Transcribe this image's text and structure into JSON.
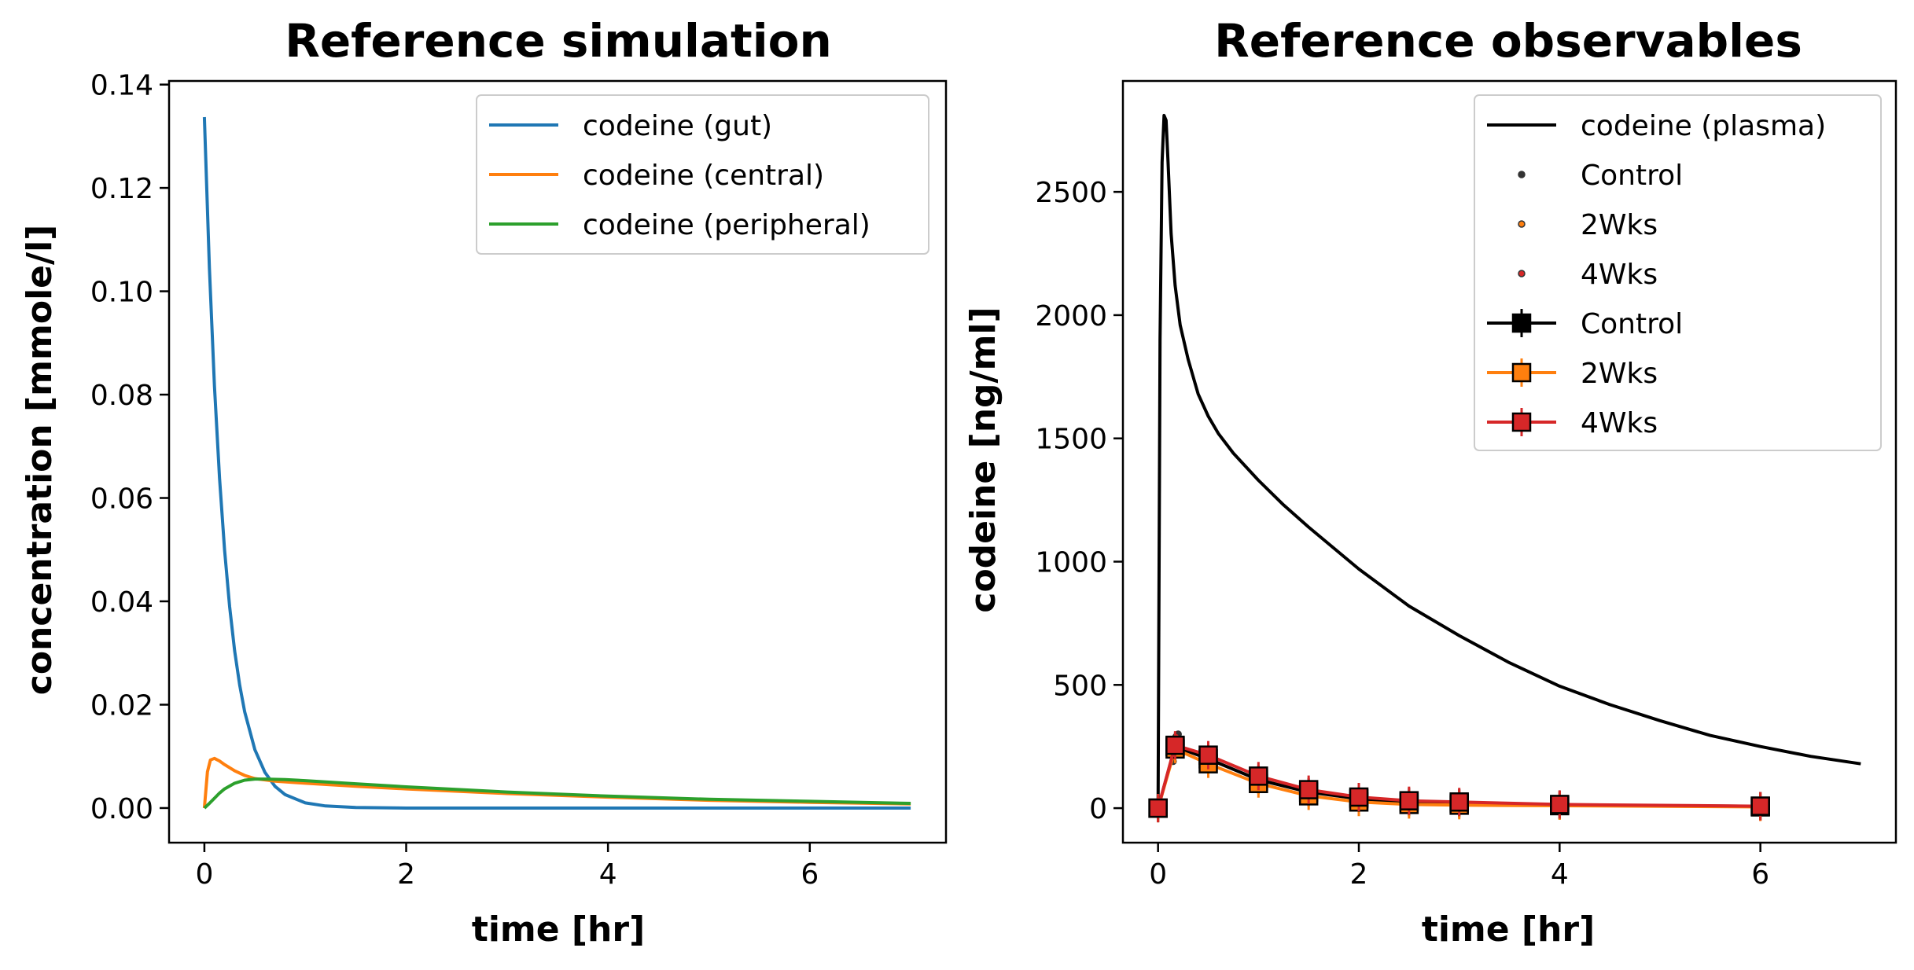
{
  "chart_data": [
    {
      "type": "line",
      "title": "Reference simulation",
      "xlabel": "time [hr]",
      "ylabel": "concentration [mmole/l]",
      "xlim": [
        -0.35,
        7.35
      ],
      "ylim": [
        -0.0067,
        0.1407
      ],
      "xticks": [
        0,
        2,
        4,
        6
      ],
      "xtick_labels": [
        "0",
        "2",
        "4",
        "6"
      ],
      "yticks": [
        0.0,
        0.02,
        0.04,
        0.06,
        0.08,
        0.1,
        0.12,
        0.14
      ],
      "ytick_labels": [
        "0.00",
        "0.02",
        "0.04",
        "0.06",
        "0.08",
        "0.10",
        "0.12",
        "0.14"
      ],
      "legend_position": "top-right",
      "grid": false,
      "series": [
        {
          "name": "codeine (gut)",
          "color": "#1f77b4",
          "x": [
            0,
            0.05,
            0.1,
            0.15,
            0.2,
            0.25,
            0.3,
            0.35,
            0.4,
            0.5,
            0.6,
            0.7,
            0.8,
            1.0,
            1.2,
            1.5,
            2.0,
            3.0,
            4.0,
            5.0,
            6.0,
            7.0
          ],
          "y": [
            0.1337,
            0.1045,
            0.0817,
            0.0638,
            0.0499,
            0.039,
            0.0304,
            0.0238,
            0.0186,
            0.0113,
            0.0069,
            0.0042,
            0.0026,
            0.001,
            0.0004,
            0.0001,
            0.0,
            0.0,
            0.0,
            0.0,
            0.0,
            0.0
          ]
        },
        {
          "name": "codeine (central)",
          "color": "#ff7f0e",
          "x": [
            0,
            0.03,
            0.06,
            0.1,
            0.15,
            0.2,
            0.3,
            0.4,
            0.5,
            0.7,
            1.0,
            1.5,
            2.0,
            3.0,
            4.0,
            5.0,
            6.0,
            7.0
          ],
          "y": [
            0.0,
            0.007,
            0.0093,
            0.0096,
            0.0091,
            0.0084,
            0.0072,
            0.0063,
            0.0057,
            0.0052,
            0.0048,
            0.0042,
            0.0037,
            0.0028,
            0.0021,
            0.0015,
            0.0011,
            0.0008
          ]
        },
        {
          "name": "codeine (peripheral)",
          "color": "#2ca02c",
          "x": [
            0,
            0.05,
            0.1,
            0.15,
            0.2,
            0.3,
            0.4,
            0.5,
            0.6,
            0.8,
            1.0,
            1.5,
            2.0,
            3.0,
            4.0,
            5.0,
            6.0,
            7.0
          ],
          "y": [
            0.0,
            0.0009,
            0.0019,
            0.0029,
            0.0037,
            0.0048,
            0.0054,
            0.0056,
            0.0056,
            0.0055,
            0.0053,
            0.0047,
            0.0041,
            0.0031,
            0.0023,
            0.0017,
            0.0013,
            0.0009
          ]
        }
      ]
    },
    {
      "type": "line",
      "title": "Reference observables",
      "xlabel": "time [hr]",
      "ylabel": "codeine [ng/ml]",
      "xlim": [
        -0.35,
        7.35
      ],
      "ylim": [
        -140,
        2950
      ],
      "xticks": [
        0,
        2,
        4,
        6
      ],
      "xtick_labels": [
        "0",
        "2",
        "4",
        "6"
      ],
      "yticks": [
        0,
        500,
        1000,
        1500,
        2000,
        2500
      ],
      "ytick_labels": [
        "0",
        "500",
        "1000",
        "1500",
        "2000",
        "2500"
      ],
      "legend_position": "top-right",
      "grid": false,
      "series": [
        {
          "name": "codeine (plasma)",
          "color": "#000000",
          "style": "line",
          "x": [
            0,
            0.02,
            0.04,
            0.06,
            0.08,
            0.1,
            0.13,
            0.17,
            0.22,
            0.3,
            0.4,
            0.5,
            0.6,
            0.75,
            1.0,
            1.25,
            1.5,
            2.0,
            2.5,
            3.0,
            3.5,
            4.0,
            4.5,
            5.0,
            5.5,
            6.0,
            6.5,
            7.0
          ],
          "y": [
            0,
            1900,
            2620,
            2810,
            2790,
            2620,
            2330,
            2120,
            1960,
            1820,
            1680,
            1590,
            1520,
            1440,
            1330,
            1230,
            1140,
            970,
            820,
            700,
            590,
            495,
            420,
            355,
            295,
            250,
            210,
            180
          ]
        },
        {
          "name": "Control",
          "color": "#333333",
          "style": "points",
          "x": [
            0.15,
            0.17,
            0.18,
            0.2
          ],
          "y": [
            190,
            240,
            280,
            300
          ]
        },
        {
          "name": "2Wks",
          "color": "#ff7f0e",
          "style": "points",
          "x": [
            0.17,
            0.19
          ],
          "y": [
            230,
            270
          ]
        },
        {
          "name": "4Wks",
          "color": "#d62728",
          "style": "points",
          "x": [
            0.16,
            0.18
          ],
          "y": [
            250,
            290
          ]
        },
        {
          "name": "Control",
          "color": "#000000",
          "style": "errorbar",
          "x": [
            0,
            0.17,
            0.5,
            1.0,
            1.5,
            2.0,
            2.5,
            3.0,
            4.0,
            6.0
          ],
          "y": [
            0,
            250,
            200,
            115,
            65,
            38,
            25,
            20,
            12,
            8
          ]
        },
        {
          "name": "2Wks",
          "color": "#ff7f0e",
          "style": "errorbar",
          "x": [
            0,
            0.17,
            0.5,
            1.0,
            1.5,
            2.0,
            2.5,
            3.0,
            4.0,
            6.0
          ],
          "y": [
            0,
            240,
            180,
            100,
            50,
            25,
            15,
            12,
            10,
            5
          ]
        },
        {
          "name": "4Wks",
          "color": "#d62728",
          "style": "errorbar",
          "x": [
            0,
            0.17,
            0.5,
            1.0,
            1.5,
            2.0,
            2.5,
            3.0,
            4.0,
            6.0
          ],
          "y": [
            0,
            255,
            215,
            130,
            75,
            45,
            30,
            25,
            15,
            8
          ]
        }
      ]
    }
  ]
}
